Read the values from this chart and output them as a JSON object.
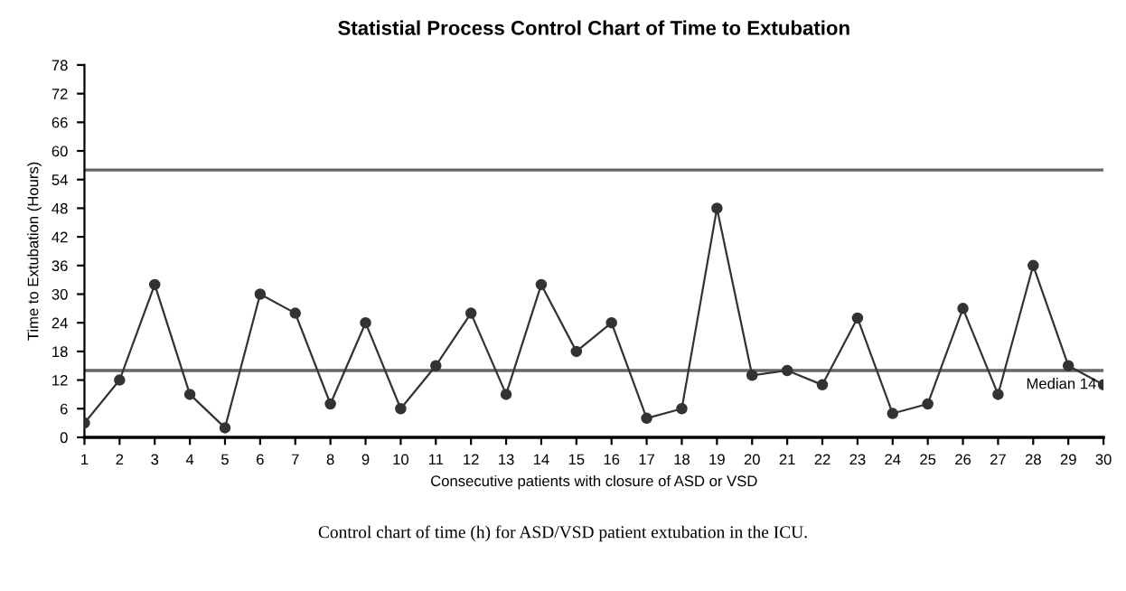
{
  "chart_data": {
    "type": "line",
    "title": "Statistial Process Control Chart of Time to Extubation",
    "xlabel": "Consecutive patients with closure of ASD or VSD",
    "ylabel": "Time to Extubation (Hours)",
    "x": [
      1,
      2,
      3,
      4,
      5,
      6,
      7,
      8,
      9,
      10,
      11,
      12,
      13,
      14,
      15,
      16,
      17,
      18,
      19,
      20,
      21,
      22,
      23,
      24,
      25,
      26,
      27,
      28,
      29,
      30
    ],
    "series": [
      {
        "color": "#333333",
        "values": [
          3,
          12,
          32,
          9,
          2,
          30,
          26,
          7,
          24,
          6,
          15,
          26,
          9,
          32,
          18,
          24,
          4,
          6,
          48,
          13,
          14,
          11,
          25,
          5,
          7,
          27,
          9,
          36,
          15,
          11
        ]
      }
    ],
    "xlim": [
      1,
      30
    ],
    "xticks": [
      1,
      2,
      3,
      4,
      5,
      6,
      7,
      8,
      9,
      10,
      11,
      12,
      13,
      14,
      15,
      16,
      17,
      18,
      19,
      20,
      21,
      22,
      23,
      24,
      25,
      26,
      27,
      28,
      29,
      30
    ],
    "ylim": [
      0,
      78
    ],
    "yticks": [
      0,
      6,
      12,
      18,
      24,
      30,
      36,
      42,
      48,
      54,
      60,
      66,
      72,
      78
    ],
    "ref_lines": [
      {
        "axis": "y",
        "value": 56,
        "label": null,
        "color": "#666666"
      },
      {
        "axis": "y",
        "value": 14,
        "label": "Median 14",
        "color": "#666666"
      }
    ],
    "marker": "circle",
    "line_style": "solid",
    "grid": false,
    "legend": false,
    "annotations": [
      "Control chart of time (h) for ASD/VSD patient extubation in the ICU."
    ]
  }
}
